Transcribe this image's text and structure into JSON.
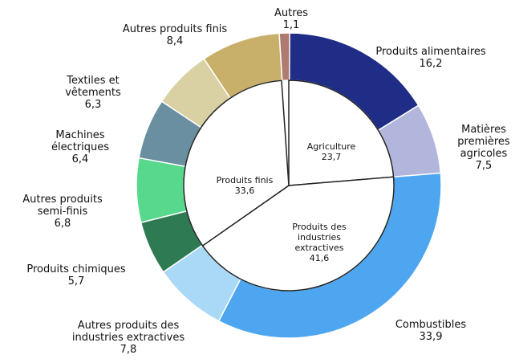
{
  "chart_data": {
    "type": "donut",
    "outer": {
      "categories": [
        "Produits alimentaires",
        "Matières\npremières\nagricoles",
        "Combustibles",
        "Autres produits des\nindustries extractives",
        "Produits chimiques",
        "Autres produits\nsemi-finis",
        "Machines\nélectriques",
        "Textiles et\nvêtements",
        "Autres produits finis",
        "Autres"
      ],
      "values": [
        16.2,
        7.5,
        33.9,
        7.8,
        5.7,
        6.8,
        6.4,
        6.3,
        8.4,
        1.1
      ],
      "value_labels": [
        "16,2",
        "7,5",
        "33,9",
        "7,8",
        "5,7",
        "6,8",
        "6,4",
        "6,3",
        "8,4",
        "1,1"
      ],
      "colors": [
        "#1f2d87",
        "#b3b6dc",
        "#4da6ef",
        "#aad9f8",
        "#2e7a52",
        "#57d88c",
        "#6a8fa0",
        "#d9d1a3",
        "#c9b06a",
        "#b07a70"
      ]
    },
    "inner": {
      "categories": [
        "Agriculture",
        "Produits des\nindustries\nextractives",
        "Produits finis"
      ],
      "values": [
        23.7,
        41.6,
        33.6
      ],
      "value_labels": [
        "23,7",
        "41,6",
        "33,6"
      ]
    }
  }
}
